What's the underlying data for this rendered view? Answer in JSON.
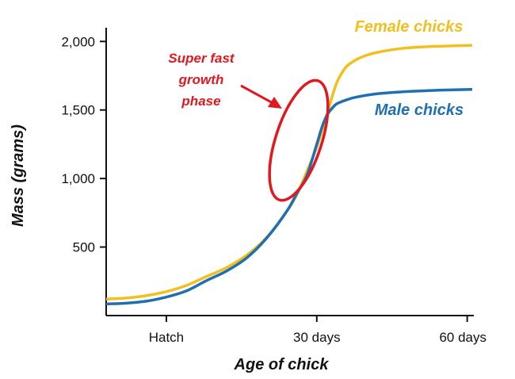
{
  "chart_data": {
    "type": "line",
    "xlabel": "Age of chick",
    "ylabel": "Mass (grams)",
    "xlim": [
      -12,
      61
    ],
    "ylim": [
      0,
      2100
    ],
    "x_ticks": [
      {
        "value": 0,
        "label": "Hatch"
      },
      {
        "value": 30,
        "label": "30 days"
      },
      {
        "value": 60,
        "label": "60 days"
      }
    ],
    "y_ticks": [
      {
        "value": 500,
        "label": "500"
      },
      {
        "value": 1000,
        "label": "1,000"
      },
      {
        "value": 1500,
        "label": "1,500"
      },
      {
        "value": 2000,
        "label": "2,000"
      }
    ],
    "series": [
      {
        "name": "Female chicks",
        "color": "#f2bf1e",
        "x": [
          -12,
          -8,
          -4,
          0,
          4,
          8,
          12,
          16,
          20,
          24,
          26,
          28,
          30,
          32,
          33,
          34,
          35,
          36,
          38,
          40,
          42,
          46,
          50,
          55,
          61
        ],
        "y": [
          120,
          128,
          145,
          175,
          220,
          285,
          350,
          440,
          570,
          760,
          880,
          1050,
          1230,
          1460,
          1590,
          1700,
          1770,
          1820,
          1870,
          1900,
          1920,
          1945,
          1958,
          1966,
          1972
        ]
      },
      {
        "name": "Male chicks",
        "color": "#1f6fb2",
        "x": [
          -12,
          -8,
          -4,
          0,
          4,
          8,
          12,
          16,
          20,
          24,
          26,
          28,
          30,
          31,
          32,
          33,
          34,
          36,
          38,
          42,
          46,
          50,
          55,
          61
        ],
        "y": [
          85,
          90,
          105,
          135,
          180,
          255,
          325,
          420,
          565,
          760,
          890,
          1020,
          1250,
          1370,
          1460,
          1510,
          1545,
          1575,
          1595,
          1618,
          1630,
          1638,
          1645,
          1650
        ]
      }
    ],
    "annotations": [
      {
        "lines": [
          "Super fast",
          "growth",
          "phase"
        ],
        "color": "#e0181f",
        "points_to": {
          "x": 27,
          "y": 1400
        }
      },
      {
        "shape": "ellipse",
        "color": "#e0181f",
        "center": {
          "x": 28,
          "y": 1310
        },
        "note": "circled region"
      }
    ]
  }
}
